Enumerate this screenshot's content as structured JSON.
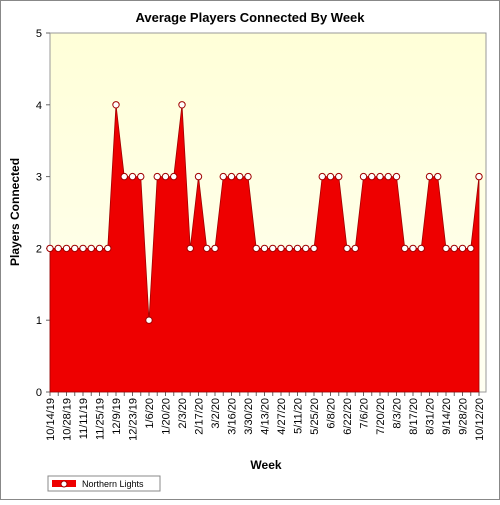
{
  "chart_data": {
    "type": "area",
    "title": "Average Players Connected By Week",
    "x_label": "Week",
    "y_label": "Players Connected",
    "categories": [
      "10/14/19",
      null,
      "10/28/19",
      null,
      "11/11/19",
      null,
      "11/25/19",
      null,
      "12/9/19",
      null,
      "12/23/19",
      null,
      "1/6/20",
      null,
      "1/20/20",
      null,
      "2/3/20",
      null,
      "2/17/20",
      null,
      "3/2/20",
      null,
      "3/16/20",
      null,
      "3/30/20",
      null,
      "4/13/20",
      null,
      "4/27/20",
      null,
      "5/11/20",
      null,
      "5/25/20",
      null,
      "6/8/20",
      null,
      "6/22/20",
      null,
      "7/6/20",
      null,
      "7/20/20",
      null,
      "8/3/20",
      null,
      "8/17/20",
      null,
      "8/31/20",
      null,
      "9/14/20",
      null,
      "9/28/20",
      null,
      "10/12/20"
    ],
    "series": [
      {
        "name": "Northern Lights",
        "color": "#ee0000",
        "values": [
          2,
          2,
          2,
          2,
          2,
          2,
          2,
          2,
          4,
          3,
          3,
          3,
          1,
          3,
          3,
          3,
          4,
          2,
          3,
          2,
          2,
          3,
          3,
          3,
          3,
          2,
          2,
          2,
          2,
          2,
          2,
          2,
          2,
          3,
          3,
          3,
          2,
          2,
          3,
          3,
          3,
          3,
          3,
          2,
          2,
          2,
          3,
          3,
          2,
          2,
          2,
          2,
          3
        ]
      }
    ],
    "ylim": [
      0,
      5
    ],
    "yticks": [
      0,
      1,
      2,
      3,
      4,
      5
    ],
    "legend": "bottom-left"
  }
}
